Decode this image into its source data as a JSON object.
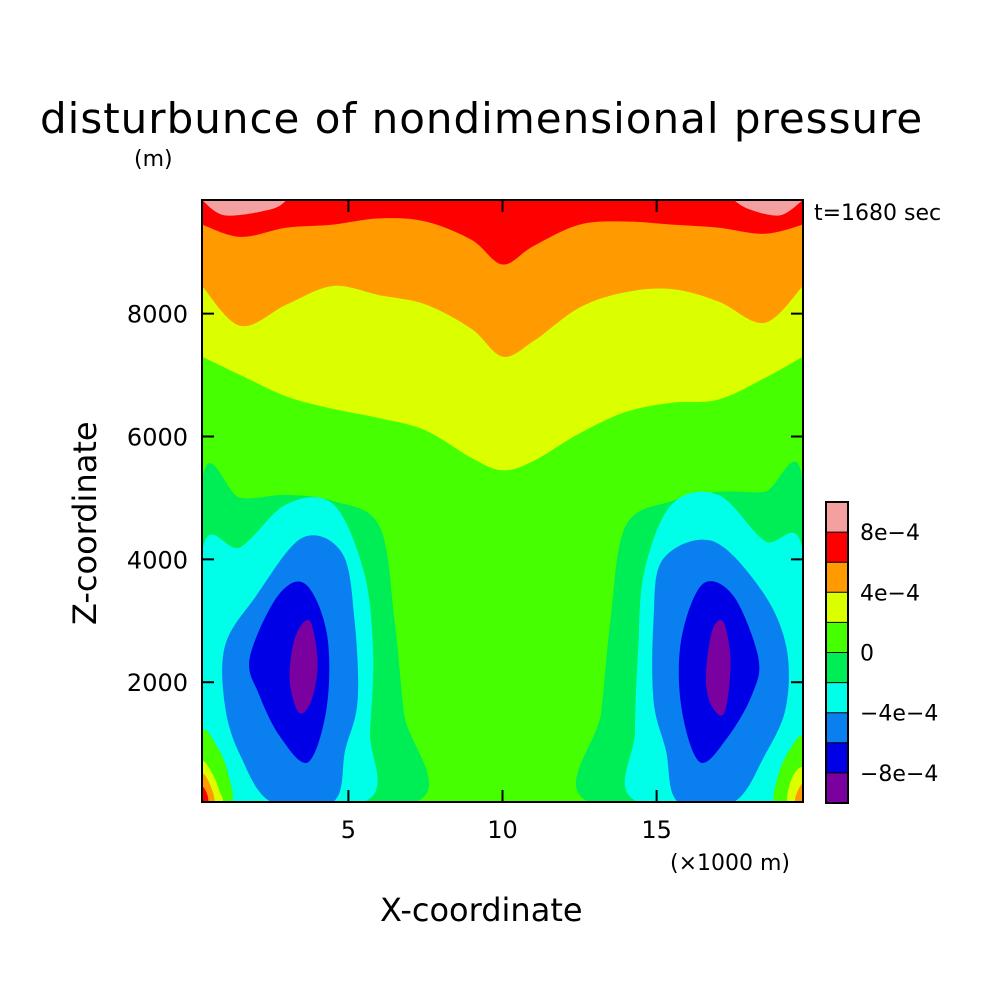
{
  "chart_data": {
    "type": "heatmap",
    "title": "disturbunce of nondimensional pressure",
    "y_unit_label": "(m)",
    "x_unit_label": "(×1000 m)",
    "time_label": "t=1680 sec",
    "xlabel": "X-coordinate",
    "ylabel": "Z-coordinate",
    "xlim": [
      0.25,
      19.75
    ],
    "ylim": [
      50,
      9850
    ],
    "x_ticks": [
      {
        "value": 5,
        "label": "5"
      },
      {
        "value": 10,
        "label": "10"
      },
      {
        "value": 15,
        "label": "15"
      }
    ],
    "y_ticks": [
      {
        "value": 2000,
        "label": "2000"
      },
      {
        "value": 4000,
        "label": "4000"
      },
      {
        "value": 6000,
        "label": "6000"
      },
      {
        "value": 8000,
        "label": "8000"
      }
    ],
    "colorbar": {
      "levels": [
        {
          "range": [
            -0.001,
            -0.0008
          ],
          "color": "#7b00a0"
        },
        {
          "range": [
            -0.0008,
            -0.0006
          ],
          "color": "#0000e6"
        },
        {
          "range": [
            -0.0006,
            -0.0004
          ],
          "color": "#0a7ff0"
        },
        {
          "range": [
            -0.0004,
            -0.0002
          ],
          "color": "#00ffe8"
        },
        {
          "range": [
            -0.0002,
            0
          ],
          "color": "#00ee55"
        },
        {
          "range": [
            0,
            0.0002
          ],
          "color": "#46ff00"
        },
        {
          "range": [
            0.0002,
            0.0004
          ],
          "color": "#dcff00"
        },
        {
          "range": [
            0.0004,
            0.0006
          ],
          "color": "#ff9a00"
        },
        {
          "range": [
            0.0006,
            0.0008
          ],
          "color": "#ff0000"
        },
        {
          "range": [
            0.0008,
            0.001
          ],
          "color": "#f5a0a0"
        }
      ],
      "tick_labels": [
        {
          "value": -0.0008,
          "label": "−8e−4"
        },
        {
          "value": -0.0004,
          "label": "−4e−4"
        },
        {
          "value": 0,
          "label": "0"
        },
        {
          "value": 0.0004,
          "label": "4e−4"
        },
        {
          "value": 0.0008,
          "label": "8e−4"
        }
      ]
    },
    "contour_bands": [
      {
        "level_index": 6,
        "region": "upper",
        "boundary": [
          [
            0.25,
            7300
          ],
          [
            1.5,
            7000
          ],
          [
            3,
            6650
          ],
          [
            4.5,
            6450
          ],
          [
            6,
            6300
          ],
          [
            7.5,
            6100
          ],
          [
            9,
            5650
          ],
          [
            10,
            5450
          ],
          [
            11,
            5600
          ],
          [
            12.5,
            6050
          ],
          [
            14,
            6400
          ],
          [
            15.5,
            6550
          ],
          [
            17,
            6600
          ],
          [
            18.5,
            6950
          ],
          [
            19.75,
            7300
          ]
        ]
      },
      {
        "level_index": 7,
        "region": "upper",
        "boundary": [
          [
            0.25,
            8450
          ],
          [
            1.5,
            7800
          ],
          [
            3,
            8150
          ],
          [
            4.5,
            8450
          ],
          [
            6,
            8300
          ],
          [
            7.5,
            8150
          ],
          [
            9,
            7750
          ],
          [
            10,
            7300
          ],
          [
            11,
            7550
          ],
          [
            12.5,
            8100
          ],
          [
            14,
            8350
          ],
          [
            15.5,
            8400
          ],
          [
            17,
            8200
          ],
          [
            18.5,
            7850
          ],
          [
            19.75,
            8450
          ]
        ]
      },
      {
        "level_index": 8,
        "region": "upper",
        "boundary": [
          [
            0.25,
            9450
          ],
          [
            1.5,
            9250
          ],
          [
            3,
            9400
          ],
          [
            4.5,
            9450
          ],
          [
            6,
            9550
          ],
          [
            7.5,
            9500
          ],
          [
            9,
            9200
          ],
          [
            10,
            8800
          ],
          [
            11,
            9100
          ],
          [
            12.5,
            9450
          ],
          [
            14,
            9500
          ],
          [
            15.5,
            9450
          ],
          [
            17,
            9400
          ],
          [
            18.5,
            9300
          ],
          [
            19.75,
            9450
          ]
        ]
      },
      {
        "level_index": 9,
        "region": "upper",
        "boundary": [
          [
            0.25,
            9850
          ],
          [
            1,
            9600
          ],
          [
            2.5,
            9700
          ],
          [
            3,
            9850
          ]
        ]
      },
      {
        "level_index": 9,
        "region": "upper",
        "boundary": [
          [
            17.5,
            9850
          ],
          [
            18,
            9700
          ],
          [
            19,
            9600
          ],
          [
            19.75,
            9850
          ]
        ]
      },
      {
        "level_index": 4,
        "region": "lobe",
        "boundary": [
          [
            0.25,
            5250
          ],
          [
            1.5,
            5000
          ],
          [
            3,
            5050
          ],
          [
            4.5,
            4950
          ],
          [
            6,
            4550
          ],
          [
            6.5,
            3000
          ],
          [
            6.8,
            1500
          ],
          [
            7.2,
            50
          ],
          [
            0.25,
            50
          ]
        ]
      },
      {
        "level_index": 4,
        "region": "lobe",
        "boundary": [
          [
            19.75,
            5250
          ],
          [
            18.5,
            5100
          ],
          [
            17,
            5100
          ],
          [
            15.5,
            4950
          ],
          [
            14,
            4550
          ],
          [
            13.5,
            3000
          ],
          [
            13.2,
            1500
          ],
          [
            12.8,
            50
          ],
          [
            19.75,
            50
          ]
        ]
      },
      {
        "level_index": 3,
        "region": "lobe",
        "boundary": [
          [
            0.25,
            4100
          ],
          [
            1.5,
            4200
          ],
          [
            3,
            4900
          ],
          [
            4.5,
            4900
          ],
          [
            5.5,
            3800
          ],
          [
            5.8,
            2500
          ],
          [
            5.7,
            1200
          ],
          [
            5.5,
            50
          ],
          [
            0.25,
            50
          ]
        ]
      },
      {
        "level_index": 3,
        "region": "lobe",
        "boundary": [
          [
            19.75,
            4100
          ],
          [
            18.5,
            4300
          ],
          [
            17,
            5050
          ],
          [
            15.5,
            4900
          ],
          [
            14.6,
            3800
          ],
          [
            14.4,
            2500
          ],
          [
            14.3,
            1200
          ],
          [
            14.4,
            50
          ],
          [
            19.75,
            50
          ]
        ]
      },
      {
        "level_index": 2,
        "region": "lobe",
        "boundary": [
          [
            1,
            2600
          ],
          [
            2,
            3400
          ],
          [
            3.5,
            4350
          ],
          [
            4.8,
            4100
          ],
          [
            5.2,
            3000
          ],
          [
            5.3,
            1700
          ],
          [
            4.9,
            900
          ],
          [
            4.5,
            50
          ],
          [
            2.5,
            50
          ],
          [
            1.5,
            800
          ],
          [
            1,
            1600
          ]
        ]
      },
      {
        "level_index": 2,
        "region": "lobe",
        "boundary": [
          [
            19.2,
            2600
          ],
          [
            18.4,
            3500
          ],
          [
            16.8,
            4300
          ],
          [
            15.2,
            4000
          ],
          [
            14.9,
            3000
          ],
          [
            14.9,
            1700
          ],
          [
            15.3,
            900
          ],
          [
            15.7,
            50
          ],
          [
            17.5,
            50
          ],
          [
            18.5,
            800
          ],
          [
            19.2,
            1600
          ]
        ]
      },
      {
        "level_index": 1,
        "region": "lobe",
        "boundary": [
          [
            1.8,
            2400
          ],
          [
            2.7,
            3400
          ],
          [
            3.6,
            3600
          ],
          [
            4.3,
            2800
          ],
          [
            4.3,
            1600
          ],
          [
            3.7,
            700
          ],
          [
            2.8,
            1100
          ],
          [
            2.1,
            1800
          ]
        ]
      },
      {
        "level_index": 1,
        "region": "lobe",
        "boundary": [
          [
            18.3,
            2400
          ],
          [
            17.5,
            3400
          ],
          [
            16.5,
            3600
          ],
          [
            15.8,
            2700
          ],
          [
            15.8,
            1600
          ],
          [
            16.4,
            700
          ],
          [
            17.3,
            1100
          ],
          [
            18.1,
            1800
          ]
        ]
      },
      {
        "level_index": 0,
        "region": "lobe",
        "boundary": [
          [
            3.2,
            2600
          ],
          [
            3.5,
            2950
          ],
          [
            3.8,
            2950
          ],
          [
            4,
            2300
          ],
          [
            3.8,
            1700
          ],
          [
            3.4,
            1500
          ],
          [
            3.1,
            2000
          ]
        ]
      },
      {
        "level_index": 0,
        "region": "lobe",
        "boundary": [
          [
            16.7,
            2600
          ],
          [
            16.9,
            2950
          ],
          [
            17.2,
            2950
          ],
          [
            17.4,
            2300
          ],
          [
            17.2,
            1500
          ],
          [
            16.8,
            1600
          ],
          [
            16.6,
            2000
          ]
        ]
      },
      {
        "level_index": 5,
        "region": "corner",
        "boundary": [
          [
            0.25,
            1200
          ],
          [
            0.8,
            900
          ],
          [
            1.1,
            500
          ],
          [
            1.2,
            50
          ],
          [
            0.25,
            50
          ]
        ]
      },
      {
        "level_index": 6,
        "region": "corner",
        "boundary": [
          [
            0.25,
            700
          ],
          [
            0.6,
            500
          ],
          [
            0.8,
            250
          ],
          [
            0.9,
            50
          ],
          [
            0.25,
            50
          ]
        ]
      },
      {
        "level_index": 7,
        "region": "corner",
        "boundary": [
          [
            0.25,
            500
          ],
          [
            0.5,
            350
          ],
          [
            0.65,
            50
          ],
          [
            0.25,
            50
          ]
        ]
      },
      {
        "level_index": 8,
        "region": "corner",
        "boundary": [
          [
            0.25,
            300
          ],
          [
            0.4,
            200
          ],
          [
            0.45,
            50
          ],
          [
            0.25,
            50
          ]
        ]
      },
      {
        "level_index": 5,
        "region": "corner",
        "boundary": [
          [
            19.75,
            1100
          ],
          [
            19.2,
            800
          ],
          [
            18.9,
            400
          ],
          [
            18.85,
            50
          ],
          [
            19.75,
            50
          ]
        ]
      },
      {
        "level_index": 6,
        "region": "corner",
        "boundary": [
          [
            19.75,
            600
          ],
          [
            19.4,
            450
          ],
          [
            19.25,
            50
          ],
          [
            19.75,
            50
          ]
        ]
      },
      {
        "level_index": 7,
        "region": "corner",
        "boundary": [
          [
            19.75,
            350
          ],
          [
            19.55,
            200
          ],
          [
            19.5,
            50
          ],
          [
            19.75,
            50
          ]
        ]
      }
    ]
  }
}
